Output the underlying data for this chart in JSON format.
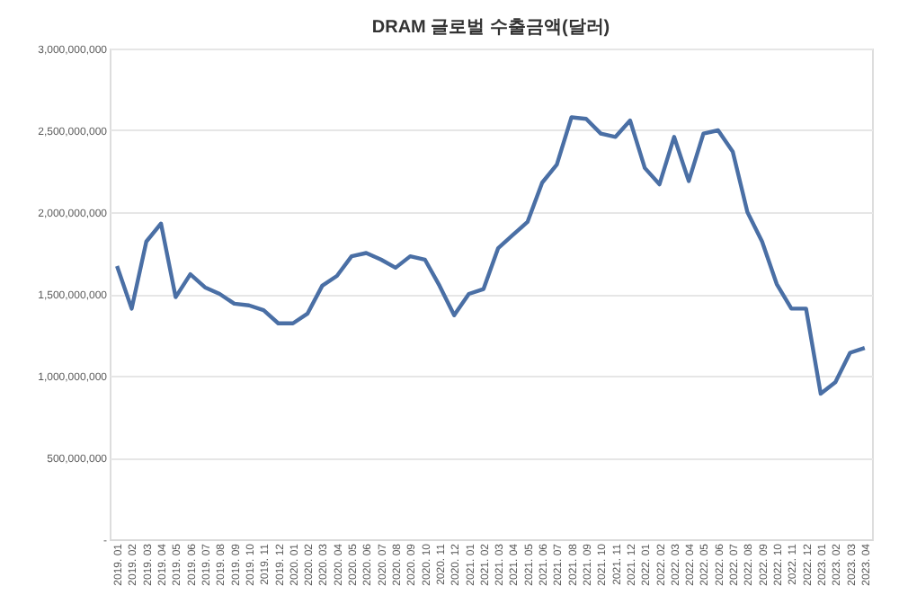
{
  "chart_data": {
    "type": "line",
    "title": "DRAM 글로벌 수출금액(달러)",
    "categories": [
      "2019. 01",
      "2019. 02",
      "2019. 03",
      "2019. 04",
      "2019. 05",
      "2019. 06",
      "2019. 07",
      "2019. 08",
      "2019. 09",
      "2019. 10",
      "2019. 11",
      "2019. 12",
      "2020. 01",
      "2020. 02",
      "2020. 03",
      "2020. 04",
      "2020. 05",
      "2020. 06",
      "2020. 07",
      "2020. 08",
      "2020. 09",
      "2020. 10",
      "2020. 11",
      "2020. 12",
      "2021. 01",
      "2021. 02",
      "2021. 03",
      "2021. 04",
      "2021. 05",
      "2021. 06",
      "2021. 07",
      "2021. 08",
      "2021. 09",
      "2021. 10",
      "2021. 11",
      "2021. 12",
      "2022. 01",
      "2022. 02",
      "2022. 03",
      "2022. 04",
      "2022. 05",
      "2022. 06",
      "2022. 07",
      "2022. 08",
      "2022. 09",
      "2022. 10",
      "2022. 11",
      "2022. 12",
      "2023. 01",
      "2023. 02",
      "2023. 03",
      "2023. 04"
    ],
    "series": [
      {
        "color": "#4a6fa5",
        "values": [
          1670000000,
          1410000000,
          1820000000,
          1930000000,
          1480000000,
          1620000000,
          1540000000,
          1500000000,
          1440000000,
          1430000000,
          1400000000,
          1320000000,
          1320000000,
          1380000000,
          1550000000,
          1610000000,
          1730000000,
          1750000000,
          1710000000,
          1660000000,
          1730000000,
          1710000000,
          1550000000,
          1370000000,
          1500000000,
          1530000000,
          1780000000,
          1860000000,
          1940000000,
          2180000000,
          2290000000,
          2580000000,
          2570000000,
          2480000000,
          2460000000,
          2560000000,
          2270000000,
          2170000000,
          2460000000,
          2190000000,
          2480000000,
          2500000000,
          2370000000,
          2000000000,
          1820000000,
          1560000000,
          1410000000,
          1410000000,
          890000000,
          960000000,
          1140000000,
          1170000000
        ]
      }
    ],
    "ylim": [
      0,
      3000000000
    ],
    "yticks": [
      {
        "value": 0,
        "label": "-"
      },
      {
        "value": 500000000,
        "label": "500,000,000"
      },
      {
        "value": 1000000000,
        "label": "1,000,000,000"
      },
      {
        "value": 1500000000,
        "label": "1,500,000,000"
      },
      {
        "value": 2000000000,
        "label": "2,000,000,000"
      },
      {
        "value": 2500000000,
        "label": "2,500,000,000"
      },
      {
        "value": 3000000000,
        "label": "3,000,000,000"
      }
    ],
    "grid": "y",
    "marker": "none",
    "line_style": "solid"
  }
}
